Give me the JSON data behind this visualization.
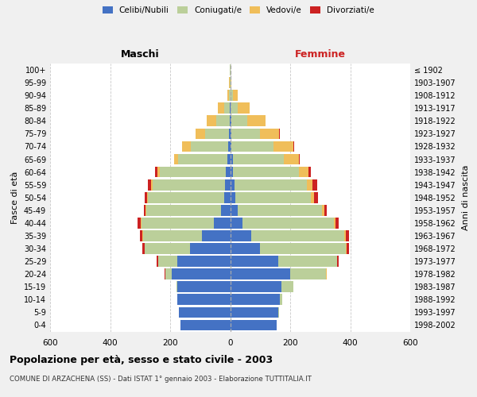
{
  "age_groups": [
    "0-4",
    "5-9",
    "10-14",
    "15-19",
    "20-24",
    "25-29",
    "30-34",
    "35-39",
    "40-44",
    "45-49",
    "50-54",
    "55-59",
    "60-64",
    "65-69",
    "70-74",
    "75-79",
    "80-84",
    "85-89",
    "90-94",
    "95-99",
    "100+"
  ],
  "birth_years": [
    "1998-2002",
    "1993-1997",
    "1988-1992",
    "1983-1987",
    "1978-1982",
    "1973-1977",
    "1968-1972",
    "1963-1967",
    "1958-1962",
    "1953-1957",
    "1948-1952",
    "1943-1947",
    "1938-1942",
    "1933-1937",
    "1928-1932",
    "1923-1927",
    "1918-1922",
    "1913-1917",
    "1908-1912",
    "1903-1907",
    "≤ 1902"
  ],
  "male_celibe": [
    165,
    170,
    175,
    175,
    195,
    175,
    135,
    95,
    55,
    30,
    20,
    18,
    15,
    8,
    6,
    4,
    2,
    1,
    0,
    0,
    0
  ],
  "male_coniugato": [
    0,
    0,
    1,
    5,
    20,
    65,
    150,
    195,
    240,
    250,
    255,
    240,
    220,
    165,
    125,
    80,
    45,
    20,
    5,
    2,
    1
  ],
  "male_vedovo": [
    0,
    0,
    0,
    0,
    1,
    1,
    1,
    2,
    2,
    2,
    3,
    5,
    8,
    15,
    30,
    30,
    30,
    20,
    5,
    1,
    0
  ],
  "male_divorziato": [
    0,
    0,
    0,
    0,
    2,
    3,
    8,
    8,
    12,
    6,
    8,
    12,
    8,
    0,
    0,
    0,
    0,
    0,
    0,
    0,
    0
  ],
  "female_celibe": [
    155,
    160,
    165,
    170,
    200,
    160,
    100,
    70,
    40,
    25,
    18,
    15,
    10,
    8,
    5,
    4,
    3,
    2,
    1,
    0,
    0
  ],
  "female_coniugata": [
    0,
    2,
    8,
    40,
    120,
    195,
    285,
    310,
    305,
    280,
    250,
    240,
    220,
    170,
    140,
    95,
    55,
    22,
    8,
    2,
    1
  ],
  "female_vedova": [
    0,
    0,
    0,
    0,
    1,
    2,
    3,
    5,
    5,
    8,
    12,
    20,
    30,
    50,
    65,
    65,
    60,
    40,
    15,
    3,
    1
  ],
  "female_divorziata": [
    0,
    0,
    0,
    1,
    2,
    5,
    8,
    12,
    12,
    10,
    12,
    14,
    10,
    3,
    2,
    1,
    1,
    1,
    0,
    0,
    0
  ],
  "colors": {
    "celibe": "#4472C4",
    "coniugato": "#BBCF9A",
    "vedovo": "#F0BE5A",
    "divorziato": "#CC2222"
  },
  "xlim": 600,
  "title": "Popolazione per età, sesso e stato civile - 2003",
  "subtitle": "COMUNE DI ARZACHENA (SS) - Dati ISTAT 1° gennaio 2003 - Elaborazione TUTTITALIA.IT",
  "ylabel": "Fasce di età",
  "ylabel_right": "Anni di nascita",
  "xlabel_maschi": "Maschi",
  "xlabel_femmine": "Femmine",
  "bg_color": "#f0f0f0",
  "plot_bg": "#ffffff"
}
